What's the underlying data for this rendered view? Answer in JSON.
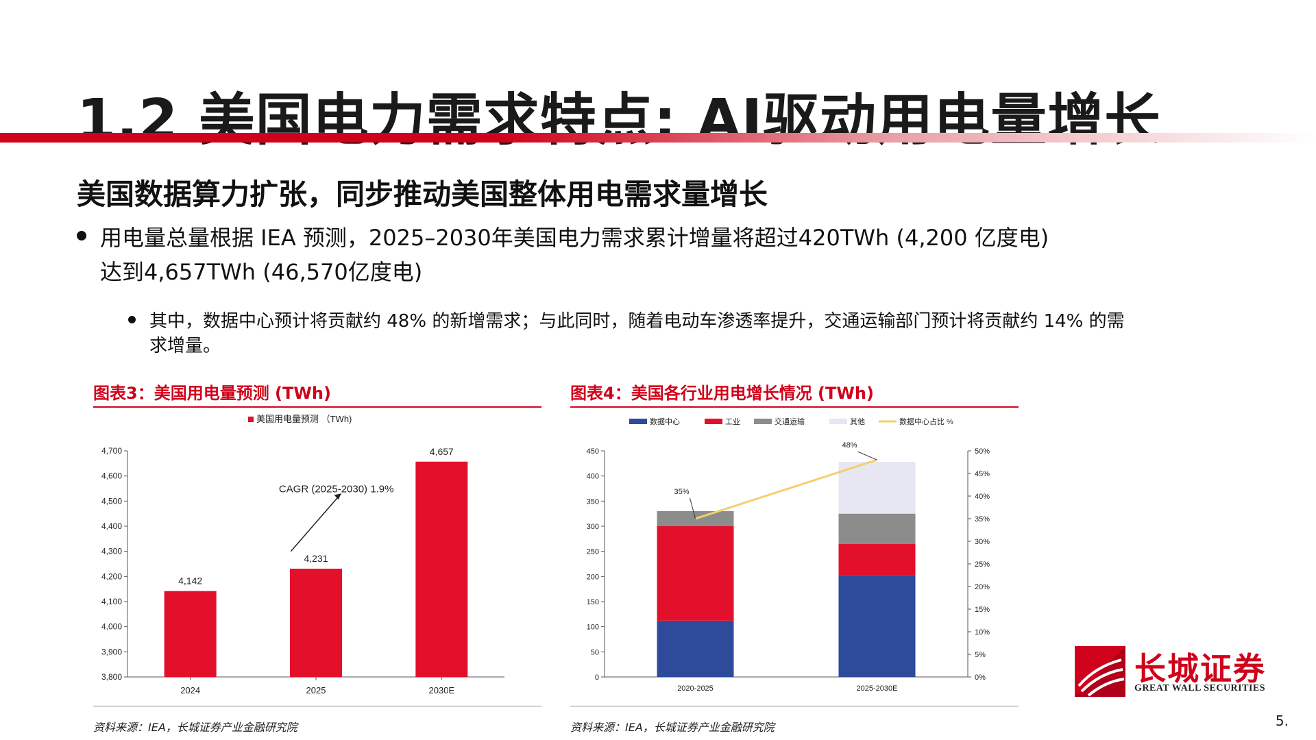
{
  "slide": {
    "title": "1.2 美国电力需求特点: AI驱动用电量增长",
    "subtitle": "美国数据算力扩张，同步推动美国整体用电需求量增长",
    "bullet1_line1": "用电量总量根据 IEA 预测，2025–2030年美国电力需求累计增量将超过420TWh (4,200 亿度电)",
    "bullet1_line2": "达到4,657TWh (46,570亿度电)",
    "bullet2_line1": "其中，数据中心预计将贡献约 48% 的新增需求；与此同时，随着电动车渗透率提升，交通运输部门预计将贡献约 14% 的需",
    "bullet2_line2": "求增量。",
    "page_number": "5.",
    "logo_cn": "长城证券",
    "logo_en": "GREAT WALL SECURITIES"
  },
  "figures": [
    {
      "title": "图表3：美国用电量预测 (TWh)",
      "source": "资料来源：IEA，长城证券产业金融研究院"
    },
    {
      "title": "图表4：美国各行业用电增长情况 (TWh)",
      "source": "资料来源：IEA，长城证券产业金融研究院"
    }
  ],
  "chart_data": [
    {
      "type": "bar",
      "title": "",
      "legend": "美国用电量预测 （TWh)",
      "categories": [
        "2024",
        "2025",
        "2030E"
      ],
      "values": [
        4142,
        4231,
        4657
      ],
      "value_labels": [
        "4,142",
        "4,231",
        "4,657"
      ],
      "ylim": [
        3800,
        4700
      ],
      "yticks": [
        3800,
        3900,
        4000,
        4100,
        4200,
        4300,
        4400,
        4500,
        4600,
        4700
      ],
      "ytick_labels": [
        "3,800",
        "3,900",
        "4,000",
        "4,100",
        "4,200",
        "4,300",
        "4,400",
        "4,500",
        "4,600",
        "4,700"
      ],
      "annotation": "CAGR (2025-2030) 1.9%",
      "color": "#e3102b",
      "grid": false
    },
    {
      "type": "bar",
      "stacked": true,
      "title": "",
      "categories": [
        "2020-2025",
        "2025-2030E"
      ],
      "series": [
        {
          "name": "数据中心",
          "values": [
            112,
            202
          ],
          "color": "#2e4a9b"
        },
        {
          "name": "工业",
          "values": [
            188,
            63
          ],
          "color": "#e3102b"
        },
        {
          "name": "交通运输",
          "values": [
            30,
            60
          ],
          "color": "#8c8c8c"
        },
        {
          "name": "其他",
          "values": [
            0,
            103
          ],
          "color": "#e6e7f2"
        }
      ],
      "line": {
        "name": "数据中心占比 %",
        "values": [
          35,
          48
        ],
        "labels": [
          "35%",
          "48%"
        ],
        "color": "#f5cf6a"
      },
      "ylim": [
        0,
        450
      ],
      "yticks": [
        0,
        50,
        100,
        150,
        200,
        250,
        300,
        350,
        400,
        450
      ],
      "y2lim": [
        0,
        50
      ],
      "y2ticks": [
        0,
        5,
        10,
        15,
        20,
        25,
        30,
        35,
        40,
        45,
        50
      ],
      "y2tick_labels": [
        "0%",
        "5%",
        "10%",
        "15%",
        "20%",
        "25%",
        "30%",
        "35%",
        "40%",
        "45%",
        "50%"
      ],
      "legend_position": "top",
      "grid": false
    }
  ]
}
